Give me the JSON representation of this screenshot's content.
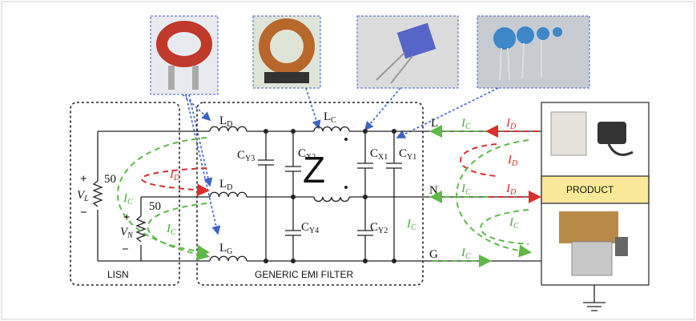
{
  "inductors": {
    "ld_top": "L",
    "ld_top_sub": "D",
    "ld_mid": "L",
    "ld_mid_sub": "D",
    "lg": "L",
    "lg_sub": "G",
    "lc": "L",
    "lc_sub": "C"
  },
  "capacitors": {
    "cy3": "C",
    "cy3_sub": "Y3",
    "cx2": "C",
    "cx2_sub": "X2",
    "cx1": "C",
    "cx1_sub": "X1",
    "cy1": "C",
    "cy1_sub": "Y1",
    "cy4": "C",
    "cy4_sub": "Y4",
    "cy2": "C",
    "cy2_sub": "Y2"
  },
  "source": {
    "vl": "V",
    "vl_sub": "L",
    "vn": "V",
    "vn_sub": "N",
    "r1": "50",
    "r2": "50",
    "plus": "+",
    "minus": "−"
  },
  "lines": {
    "l": "L",
    "n": "N",
    "g": "G"
  },
  "currents": {
    "ic": "I",
    "ic_sub": "C",
    "id": "I",
    "id_sub": "D"
  },
  "blocks": {
    "lisn": "LISN",
    "filter": "GENERIC EMI FILTER",
    "product": "PRODUCT",
    "z": "Z"
  },
  "colors": {
    "common_mode": "#5fb848",
    "differential_mode": "#d83030",
    "pointer": "#3c62c8",
    "product_box": "#fbe99a"
  },
  "photos": [
    "toroid-inductor-photo",
    "common-mode-choke-photo",
    "x-capacitor-photo",
    "y-capacitors-photo",
    "ups-adapter-photo",
    "power-supply-photo"
  ]
}
